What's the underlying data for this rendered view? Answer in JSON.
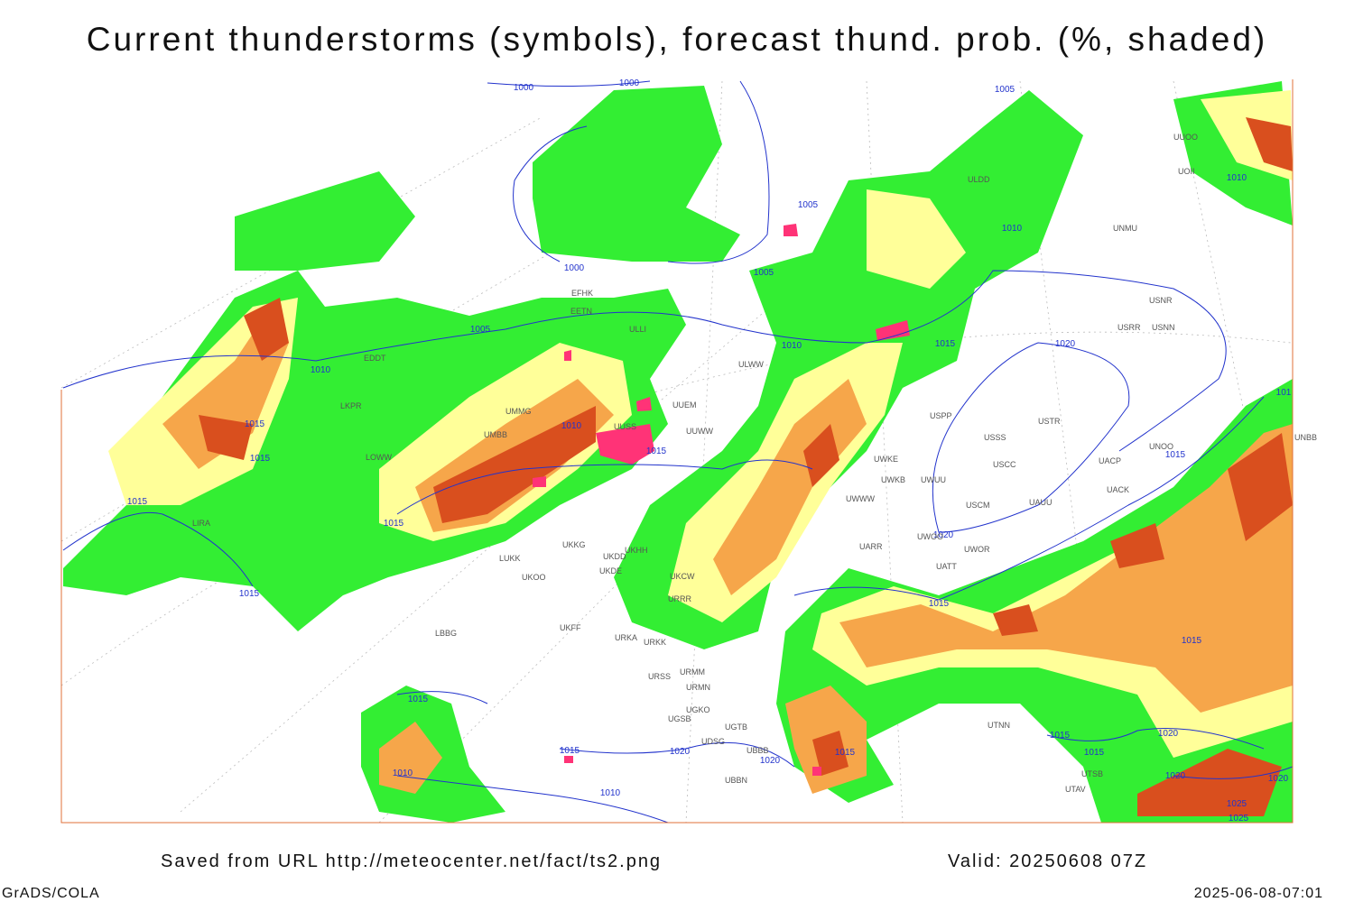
{
  "header": {
    "title": "Current thunderstorms (symbols), forecast thund. prob. (%, shaded)"
  },
  "map": {
    "isobar_labels": [
      1000,
      1000,
      1005,
      1005,
      1010,
      1000,
      1005,
      1005,
      1010,
      1015,
      1020,
      1010,
      1015,
      1015,
      1010,
      1015,
      1015,
      1015,
      1015,
      1020,
      1015,
      1015,
      1015,
      1015,
      1015,
      1015,
      1020,
      1020,
      1010,
      1010,
      1015,
      1015,
      1020,
      1020,
      1020,
      1025,
      1025,
      1010,
      101
    ],
    "station_labels": [
      "UUEM",
      "UUWW",
      "UUSS",
      "ULWW",
      "UMMG",
      "UMBB",
      "EFHK",
      "EETN",
      "ULLI",
      "EDDT",
      "LKPR",
      "LOWW",
      "LIRA",
      "LUKK",
      "UKKG",
      "UKDD",
      "UKHH",
      "UKDE",
      "UKOO",
      "UKCW",
      "URRR",
      "UKFF",
      "URKA",
      "URKK",
      "LBBG",
      "URSS",
      "URMM",
      "URMN",
      "UGSB",
      "UGKO",
      "UGTB",
      "UDSG",
      "UBBB",
      "UBBN",
      "ULDD",
      "UUOO",
      "UOII",
      "UNMU",
      "USNR",
      "USNN",
      "USRR",
      "USPP",
      "USTR",
      "USSS",
      "USCC",
      "UACP",
      "UNOO",
      "UACK",
      "USCM",
      "UAUU",
      "UWKE",
      "UWKB",
      "UWUU",
      "UWWW",
      "UWOO",
      "UWOR",
      "UATT",
      "UARR",
      "UTNN",
      "UTAV",
      "UTSB",
      "UNBB"
    ]
  },
  "footer": {
    "source": "Saved from URL http://meteocenter.net/fact/ts2.png",
    "valid": "Valid: 20250608 07Z",
    "software": "GrADS/COLA",
    "timestamp": "2025-06-08-07:01"
  }
}
